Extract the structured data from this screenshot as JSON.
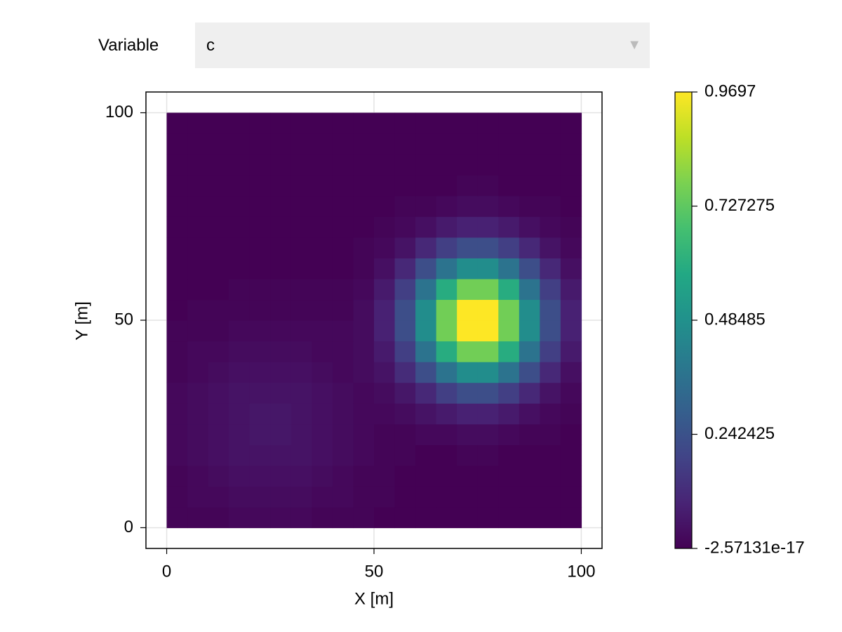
{
  "menu": {
    "label": "Variable",
    "selected": "c"
  },
  "chart_data": {
    "type": "heatmap",
    "x_label": "X [m]",
    "y_label": "Y [m]",
    "xlim": [
      -5,
      105
    ],
    "ylim": [
      -5,
      105
    ],
    "xticks": [
      0,
      50,
      100
    ],
    "yticks": [
      0,
      50,
      100
    ],
    "grid": true,
    "colormap": "viridis",
    "zlim": [
      -2.57131e-17,
      0.9697
    ],
    "zticks": [
      -2.57131e-17,
      0.242425,
      0.48485,
      0.727275,
      0.9697
    ],
    "x": [
      2.5,
      7.5,
      12.5,
      17.5,
      22.5,
      27.5,
      32.5,
      37.5,
      42.5,
      47.5,
      52.5,
      57.5,
      62.5,
      67.5,
      72.5,
      77.5,
      82.5,
      87.5,
      92.5,
      97.5
    ],
    "y": [
      2.5,
      7.5,
      12.5,
      17.5,
      22.5,
      27.5,
      32.5,
      37.5,
      42.5,
      47.5,
      52.5,
      57.5,
      62.5,
      67.5,
      72.5,
      77.5,
      82.5,
      87.5,
      92.5,
      97.5
    ],
    "z": [
      [
        0.01,
        0.01,
        0.01,
        0.02,
        0.02,
        0.02,
        0.02,
        0.01,
        0.01,
        0.01,
        0,
        0,
        0,
        0,
        0,
        0,
        0,
        0,
        0,
        0
      ],
      [
        0.01,
        0.02,
        0.02,
        0.03,
        0.03,
        0.03,
        0.03,
        0.02,
        0.02,
        0.01,
        0.01,
        0,
        0,
        0,
        0,
        0,
        0,
        0,
        0,
        0
      ],
      [
        0.01,
        0.02,
        0.03,
        0.04,
        0.04,
        0.04,
        0.04,
        0.03,
        0.02,
        0.01,
        0.01,
        0,
        0,
        0,
        0,
        0,
        0,
        0,
        0,
        0
      ],
      [
        0.02,
        0.03,
        0.04,
        0.05,
        0.05,
        0.05,
        0.05,
        0.04,
        0.03,
        0.02,
        0.01,
        0.01,
        0,
        0,
        0.01,
        0.01,
        0,
        0,
        0,
        0
      ],
      [
        0.02,
        0.03,
        0.04,
        0.05,
        0.06,
        0.06,
        0.05,
        0.04,
        0.03,
        0.02,
        0.01,
        0.01,
        0.02,
        0.02,
        0.03,
        0.03,
        0.02,
        0.01,
        0.01,
        0
      ],
      [
        0.02,
        0.03,
        0.04,
        0.05,
        0.06,
        0.06,
        0.05,
        0.04,
        0.03,
        0.02,
        0.02,
        0.03,
        0.05,
        0.07,
        0.09,
        0.09,
        0.07,
        0.04,
        0.02,
        0.01
      ],
      [
        0.02,
        0.03,
        0.04,
        0.05,
        0.05,
        0.05,
        0.05,
        0.04,
        0.03,
        0.02,
        0.03,
        0.06,
        0.11,
        0.18,
        0.23,
        0.23,
        0.18,
        0.11,
        0.05,
        0.02
      ],
      [
        0.01,
        0.02,
        0.03,
        0.04,
        0.04,
        0.04,
        0.04,
        0.03,
        0.02,
        0.03,
        0.05,
        0.12,
        0.23,
        0.37,
        0.47,
        0.47,
        0.37,
        0.23,
        0.11,
        0.04
      ],
      [
        0.01,
        0.02,
        0.02,
        0.03,
        0.03,
        0.03,
        0.03,
        0.02,
        0.02,
        0.03,
        0.07,
        0.18,
        0.37,
        0.6,
        0.76,
        0.76,
        0.6,
        0.37,
        0.18,
        0.07
      ],
      [
        0.01,
        0.01,
        0.01,
        0.02,
        0.02,
        0.02,
        0.02,
        0.02,
        0.02,
        0.03,
        0.09,
        0.23,
        0.47,
        0.76,
        0.97,
        0.97,
        0.76,
        0.47,
        0.23,
        0.09
      ],
      [
        0,
        0.01,
        0.01,
        0.01,
        0.01,
        0.01,
        0.01,
        0.01,
        0.01,
        0.03,
        0.09,
        0.23,
        0.47,
        0.76,
        0.97,
        0.97,
        0.76,
        0.47,
        0.23,
        0.09
      ],
      [
        0,
        0,
        0,
        0.01,
        0.01,
        0.01,
        0.01,
        0.01,
        0.01,
        0.02,
        0.07,
        0.18,
        0.37,
        0.6,
        0.76,
        0.76,
        0.6,
        0.37,
        0.18,
        0.07
      ],
      [
        0,
        0,
        0,
        0,
        0,
        0,
        0,
        0,
        0,
        0.01,
        0.04,
        0.11,
        0.23,
        0.37,
        0.47,
        0.47,
        0.37,
        0.23,
        0.11,
        0.04
      ],
      [
        0,
        0,
        0,
        0,
        0,
        0,
        0,
        0,
        0,
        0.01,
        0.02,
        0.05,
        0.11,
        0.18,
        0.23,
        0.23,
        0.18,
        0.11,
        0.05,
        0.02
      ],
      [
        0,
        0,
        0,
        0,
        0,
        0,
        0,
        0,
        0,
        0,
        0.01,
        0.02,
        0.04,
        0.07,
        0.09,
        0.09,
        0.07,
        0.04,
        0.02,
        0.01
      ],
      [
        0,
        0,
        0,
        0,
        0,
        0,
        0,
        0,
        0,
        0,
        0,
        0.01,
        0.01,
        0.02,
        0.03,
        0.03,
        0.02,
        0.01,
        0.01,
        0
      ],
      [
        0,
        0,
        0,
        0,
        0,
        0,
        0,
        0,
        0,
        0,
        0,
        0,
        0,
        0,
        0.01,
        0.01,
        0,
        0,
        0,
        0
      ],
      [
        0,
        0,
        0,
        0,
        0,
        0,
        0,
        0,
        0,
        0,
        0,
        0,
        0,
        0,
        0,
        0,
        0,
        0,
        0,
        0
      ],
      [
        0,
        0,
        0,
        0,
        0,
        0,
        0,
        0,
        0,
        0,
        0,
        0,
        0,
        0,
        0,
        0,
        0,
        0,
        0,
        0
      ],
      [
        0,
        0,
        0,
        0,
        0,
        0,
        0,
        0,
        0,
        0,
        0,
        0,
        0,
        0,
        0,
        0,
        0,
        0,
        0,
        0
      ]
    ]
  }
}
